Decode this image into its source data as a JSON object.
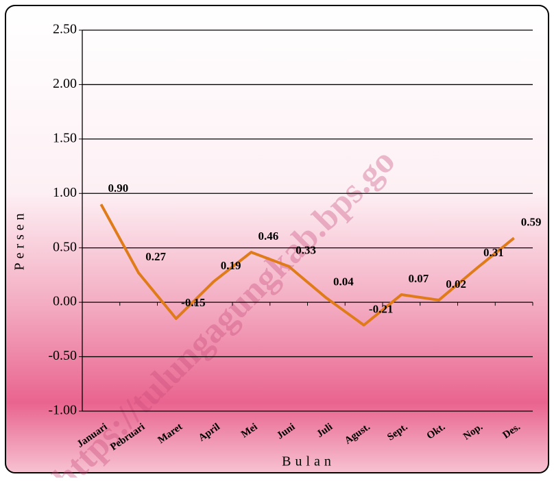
{
  "chart_data": {
    "type": "line",
    "y_label": "Persen",
    "x_label": "Bulan",
    "watermark": "https://tulungagungkab.bps.go",
    "categories": [
      "Januari",
      "Pebruari",
      "Maret",
      "April",
      "Mei",
      "Juni",
      "Juli",
      "Agust.",
      "Sept.",
      "Okt.",
      "Nop.",
      "Des."
    ],
    "values": [
      0.9,
      0.27,
      -0.15,
      0.19,
      0.46,
      0.33,
      0.04,
      -0.21,
      0.07,
      0.02,
      0.31,
      0.59
    ],
    "value_labels": [
      "0.90",
      "0.27",
      "-0.15",
      "0.19",
      "0.46",
      "0.33",
      "0.04",
      "-0.21",
      "0.07",
      "0.02",
      "0.31",
      "0.59"
    ],
    "color": "#e07b1a",
    "ylim": [
      -1,
      2.5
    ],
    "yticks": [
      {
        "value": -1,
        "label": "-1.00"
      },
      {
        "value": -0.5,
        "label": "-0.50"
      },
      {
        "value": 0,
        "label": "0.00"
      },
      {
        "value": 0.5,
        "label": "0.50"
      },
      {
        "value": 1,
        "label": "1.00"
      },
      {
        "value": 1.5,
        "label": "1.50"
      },
      {
        "value": 2,
        "label": "2.00"
      },
      {
        "value": 2.5,
        "label": "2.50"
      }
    ],
    "grid": true
  }
}
